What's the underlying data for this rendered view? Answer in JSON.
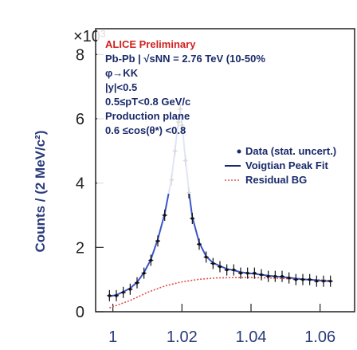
{
  "chart_data": {
    "type": "scatter",
    "title": "",
    "top_text": "",
    "ylabel": "Counts / (2 MeV/c²)",
    "xlabel": "",
    "y_multiplier": "×10³",
    "xlim": [
      0.995,
      1.07
    ],
    "ylim": [
      0,
      8800
    ],
    "x_ticks": [
      "1",
      "1.02",
      "1.04",
      "1.06"
    ],
    "x_tick_values": [
      1.0,
      1.02,
      1.04,
      1.06
    ],
    "y_ticks": [
      "0",
      "2",
      "4",
      "6",
      "8"
    ],
    "y_tick_values": [
      0,
      2000,
      4000,
      6000,
      8000
    ],
    "annotations": [
      "ALICE Preliminary",
      "Pb-Pb | √sNN = 2.76 TeV (10-50%",
      "φ→KK",
      "|y|<0.5",
      "0.5≤pT<0.8 GeV/c",
      "Production plane",
      "0.6 ≤cos(θ*) <0.8"
    ],
    "legend": [
      {
        "label": "Data (stat. uncert.)",
        "color": "#1a2a6a"
      },
      {
        "label": "Voigtian Peak Fit",
        "color": "#1a2a6a"
      },
      {
        "label": "Residual BG",
        "color": "#e05050"
      }
    ],
    "series": [
      {
        "name": "Data (stat. uncert.)",
        "x": [
          0.999,
          1.001,
          1.003,
          1.005,
          1.007,
          1.009,
          1.011,
          1.013,
          1.015,
          1.017,
          1.018,
          1.019,
          1.0195,
          1.02,
          1.021,
          1.022,
          1.023,
          1.025,
          1.027,
          1.029,
          1.031,
          1.033,
          1.035,
          1.037,
          1.039,
          1.041,
          1.043,
          1.045,
          1.047,
          1.049,
          1.051,
          1.053,
          1.055,
          1.057,
          1.059,
          1.061,
          1.063
        ],
        "y": [
          500,
          500,
          600,
          700,
          900,
          1200,
          1600,
          2200,
          3000,
          4100,
          5000,
          5900,
          6300,
          5800,
          4700,
          3700,
          2900,
          2100,
          1700,
          1500,
          1400,
          1300,
          1300,
          1200,
          1200,
          1200,
          1150,
          1100,
          1100,
          1100,
          1050,
          1000,
          1000,
          1000,
          950,
          950,
          950
        ]
      },
      {
        "name": "Voigtian Peak Fit",
        "x": [
          0.999,
          1.001,
          1.003,
          1.005,
          1.007,
          1.009,
          1.011,
          1.013,
          1.015,
          1.017,
          1.018,
          1.019,
          1.0195,
          1.02,
          1.021,
          1.022,
          1.023,
          1.025,
          1.027,
          1.029,
          1.031,
          1.033,
          1.035,
          1.037,
          1.039,
          1.041,
          1.043,
          1.045,
          1.047,
          1.049,
          1.051,
          1.053,
          1.055,
          1.057,
          1.059,
          1.061,
          1.063
        ],
        "y": [
          480,
          520,
          620,
          730,
          920,
          1220,
          1620,
          2250,
          3050,
          4150,
          5050,
          5950,
          6250,
          5850,
          4750,
          3750,
          2950,
          2150,
          1720,
          1520,
          1420,
          1330,
          1290,
          1230,
          1200,
          1180,
          1150,
          1120,
          1100,
          1080,
          1060,
          1030,
          1010,
          1000,
          980,
          960,
          950
        ]
      },
      {
        "name": "Residual BG",
        "x": [
          0.999,
          1.005,
          1.01,
          1.015,
          1.02,
          1.025,
          1.03,
          1.035,
          1.04,
          1.045,
          1.05,
          1.055,
          1.06,
          1.063
        ],
        "y": [
          120,
          350,
          600,
          800,
          930,
          1010,
          1050,
          1060,
          1060,
          1050,
          1030,
          1010,
          990,
          970
        ]
      }
    ]
  }
}
